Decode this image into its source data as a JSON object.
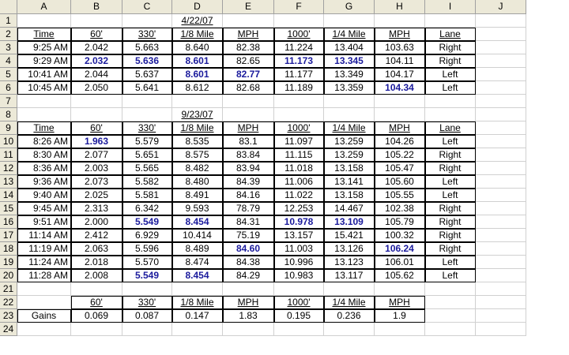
{
  "sheet": {
    "column_headers": [
      "A",
      "B",
      "C",
      "D",
      "E",
      "F",
      "G",
      "H",
      "I",
      "J"
    ],
    "row_numbers": [
      1,
      2,
      3,
      4,
      5,
      6,
      7,
      8,
      9,
      10,
      11,
      12,
      13,
      14,
      15,
      16,
      17,
      18,
      19,
      20,
      21,
      22,
      23,
      24
    ],
    "rows": [
      [
        null,
        null,
        null,
        "4/22/07"
      ],
      [
        "Time",
        "60'",
        "330'",
        "1/8 Mile",
        "MPH",
        "1000'",
        "1/4 Mile",
        "MPH",
        "Lane"
      ],
      [
        "9:25 AM",
        "2.042",
        "5.663",
        "8.640",
        "82.38",
        "11.224",
        "13.404",
        "103.63",
        "Right"
      ],
      [
        "9:29 AM",
        {
          "text": "2.032",
          "bold": true
        },
        {
          "text": "5.636",
          "bold": true
        },
        {
          "text": "8.601",
          "bold": true
        },
        "82.65",
        {
          "text": "11.173",
          "bold": true
        },
        {
          "text": "13.345",
          "bold": true
        },
        "104.11",
        "Right"
      ],
      [
        "10:41 AM",
        "2.044",
        "5.637",
        {
          "text": "8.601",
          "bold": true
        },
        {
          "text": "82.77",
          "bold": true
        },
        "11.177",
        "13.349",
        "104.17",
        "Left"
      ],
      [
        "10:45 AM",
        "2.050",
        "5.641",
        "8.612",
        "82.68",
        "11.189",
        "13.359",
        {
          "text": "104.34",
          "bold": true
        },
        "Left"
      ],
      [],
      [
        null,
        null,
        null,
        "9/23/07"
      ],
      [
        "Time",
        "60'",
        "330'",
        "1/8 Mile",
        "MPH",
        "1000'",
        "1/4 Mile",
        "MPH",
        "Lane"
      ],
      [
        "8:26 AM",
        {
          "text": "1.963",
          "bold": true
        },
        "5.579",
        "8.535",
        "83.1",
        "11.097",
        "13.259",
        "104.26",
        "Left"
      ],
      [
        "8:30 AM",
        "2.077",
        "5.651",
        "8.575",
        "83.84",
        "11.115",
        "13.259",
        "105.22",
        "Right"
      ],
      [
        "8:36 AM",
        "2.003",
        "5.565",
        "8.482",
        "83.94",
        "11.018",
        "13.158",
        "105.47",
        "Right"
      ],
      [
        "9:36 AM",
        "2.073",
        "5.582",
        "8.480",
        "84.39",
        "11.006",
        "13.141",
        "105.60",
        "Left"
      ],
      [
        "9:40 AM",
        "2.025",
        "5.581",
        "8.491",
        "84.16",
        "11.022",
        "13.158",
        "105.55",
        "Left"
      ],
      [
        "9:45 AM",
        "2.313",
        "6.342",
        "9.593",
        "78.79",
        "12.253",
        "14.467",
        "102.38",
        "Right"
      ],
      [
        "9:51 AM",
        "2.000",
        {
          "text": "5.549",
          "bold": true
        },
        {
          "text": "8.454",
          "bold": true
        },
        "84.31",
        {
          "text": "10.978",
          "bold": true
        },
        {
          "text": "13.109",
          "bold": true
        },
        "105.79",
        "Right"
      ],
      [
        "11:14 AM",
        "2.412",
        "6.929",
        "10.414",
        "75.19",
        "13.157",
        "15.421",
        "100.32",
        "Right"
      ],
      [
        "11:19 AM",
        "2.063",
        "5.596",
        "8.489",
        {
          "text": "84.60",
          "bold": true
        },
        "11.003",
        "13.126",
        {
          "text": "106.24",
          "bold": true
        },
        "Right"
      ],
      [
        "11:24 AM",
        "2.018",
        "5.570",
        "8.474",
        "84.38",
        "10.996",
        "13.123",
        "106.01",
        "Left"
      ],
      [
        "11:28 AM",
        "2.008",
        {
          "text": "5.549",
          "bold": true
        },
        {
          "text": "8.454",
          "bold": true
        },
        "84.29",
        "10.983",
        "13.117",
        "105.62",
        "Left"
      ],
      [],
      [
        null,
        "60'",
        "330'",
        "1/8 Mile",
        "MPH",
        "1000'",
        "1/4 Mile",
        "MPH"
      ],
      [
        "Gains",
        "0.069",
        "0.087",
        "0.147",
        "1.83",
        "0.195",
        "0.236",
        "1.9"
      ],
      []
    ]
  }
}
